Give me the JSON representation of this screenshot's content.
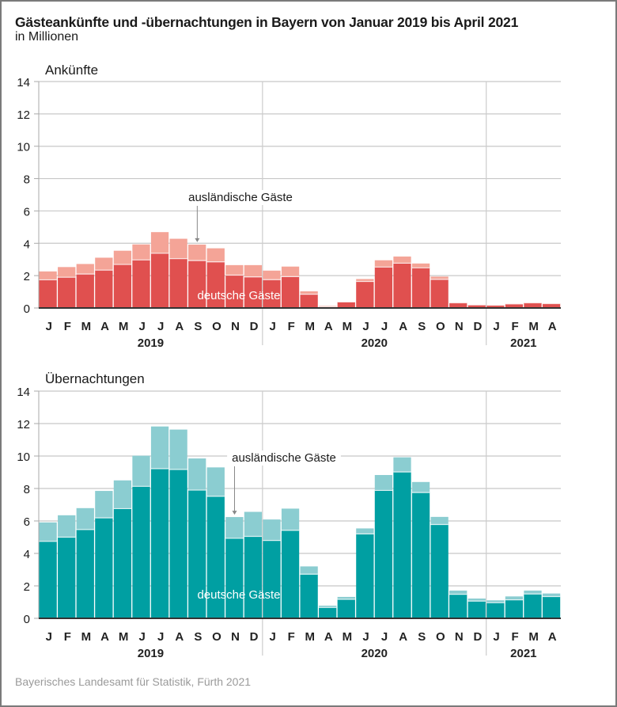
{
  "header": {
    "title": "Gästeankünfte und -übernachtungen in Bayern von Januar 2019 bis April 2021",
    "subtitle": "in Millionen"
  },
  "footer": {
    "source": "Bayerisches Landesamt für Statistik, Fürth 2021"
  },
  "chart_data": [
    {
      "type": "bar",
      "stacked": true,
      "title": "Ankünfte",
      "xlabel": "",
      "ylabel": "in Millionen",
      "ylim": [
        0,
        14
      ],
      "yticks": [
        0,
        2,
        4,
        6,
        8,
        10,
        12,
        14
      ],
      "grid": true,
      "categories": [
        "J",
        "F",
        "M",
        "A",
        "M",
        "J",
        "J",
        "A",
        "S",
        "O",
        "N",
        "D",
        "J",
        "F",
        "M",
        "A",
        "M",
        "J",
        "J",
        "A",
        "S",
        "O",
        "N",
        "D",
        "J",
        "F",
        "M",
        "A"
      ],
      "year_groups": [
        {
          "label": "2019",
          "start": 0,
          "count": 12
        },
        {
          "label": "2020",
          "start": 12,
          "count": 12
        },
        {
          "label": "2021",
          "start": 24,
          "count": 4
        }
      ],
      "colors": {
        "deutsche": "#e0504f",
        "auslaendische": "#f4a497"
      },
      "annotations": {
        "foreign_label": "ausländische Gäste",
        "foreign_arrow_index": 8,
        "german_label": "deutsche Gäste"
      },
      "series": [
        {
          "name": "deutsche Gäste",
          "values": [
            1.74,
            1.9,
            2.1,
            2.34,
            2.69,
            2.97,
            3.38,
            3.05,
            2.93,
            2.85,
            2.03,
            1.92,
            1.75,
            1.94,
            0.85,
            0.08,
            0.37,
            1.64,
            2.53,
            2.77,
            2.48,
            1.77,
            0.32,
            0.19,
            0.17,
            0.25,
            0.32,
            0.27
          ]
        },
        {
          "name": "ausländische Gäste",
          "values": [
            0.52,
            0.63,
            0.62,
            0.77,
            0.85,
            0.96,
            1.31,
            1.23,
            0.99,
            0.84,
            0.62,
            0.73,
            0.56,
            0.62,
            0.18,
            0.05,
            0.02,
            0.15,
            0.42,
            0.41,
            0.27,
            0.17,
            0.02,
            0.01,
            0.01,
            0.02,
            0.02,
            0.02
          ]
        }
      ]
    },
    {
      "type": "bar",
      "stacked": true,
      "title": "Übernachtungen",
      "xlabel": "",
      "ylabel": "in Millionen",
      "ylim": [
        0,
        14
      ],
      "yticks": [
        0,
        2,
        4,
        6,
        8,
        10,
        12,
        14
      ],
      "grid": true,
      "categories": [
        "J",
        "F",
        "M",
        "A",
        "M",
        "J",
        "J",
        "A",
        "S",
        "O",
        "N",
        "D",
        "J",
        "F",
        "M",
        "A",
        "M",
        "J",
        "J",
        "A",
        "S",
        "O",
        "N",
        "D",
        "J",
        "F",
        "M",
        "A"
      ],
      "year_groups": [
        {
          "label": "2019",
          "start": 0,
          "count": 12
        },
        {
          "label": "2020",
          "start": 12,
          "count": 12
        },
        {
          "label": "2021",
          "start": 24,
          "count": 4
        }
      ],
      "colors": {
        "deutsche": "#009fa2",
        "auslaendische": "#8bcdd1"
      },
      "annotations": {
        "foreign_label": "ausländische Gäste",
        "foreign_arrow_index": 10,
        "german_label": "deutsche Gäste"
      },
      "series": [
        {
          "name": "deutsche Gäste",
          "values": [
            4.74,
            5.0,
            5.47,
            6.19,
            6.76,
            8.13,
            9.22,
            9.17,
            7.9,
            7.52,
            4.93,
            5.05,
            4.8,
            5.42,
            2.72,
            0.67,
            1.17,
            5.2,
            7.88,
            9.02,
            7.75,
            5.78,
            1.48,
            1.06,
            0.96,
            1.14,
            1.5,
            1.34
          ]
        },
        {
          "name": "ausländische Gäste",
          "values": [
            1.17,
            1.35,
            1.32,
            1.66,
            1.74,
            1.89,
            2.6,
            2.46,
            1.95,
            1.78,
            1.31,
            1.51,
            1.29,
            1.34,
            0.48,
            0.11,
            0.15,
            0.34,
            0.95,
            0.9,
            0.65,
            0.47,
            0.23,
            0.16,
            0.15,
            0.21,
            0.21,
            0.19
          ]
        }
      ]
    }
  ]
}
